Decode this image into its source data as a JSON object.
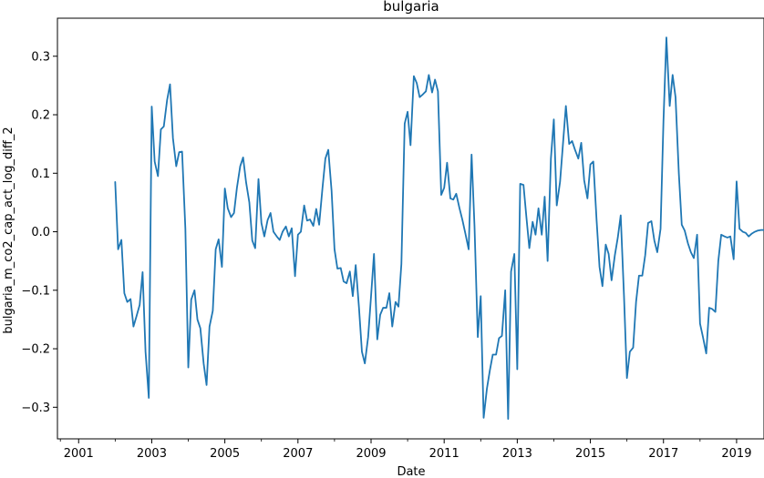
{
  "chart_data": {
    "type": "line",
    "title": "bulgaria",
    "xlabel": "Date",
    "ylabel": "bulgaria_m_co2_cap_act_log_diff_2",
    "xlim": [
      2000.42,
      2019.75
    ],
    "ylim": [
      -0.354,
      0.365
    ],
    "grid": false,
    "x_ticks": [
      {
        "label": "2001",
        "value": 2001
      },
      {
        "label": "2003",
        "value": 2003
      },
      {
        "label": "2005",
        "value": 2005
      },
      {
        "label": "2007",
        "value": 2007
      },
      {
        "label": "2009",
        "value": 2009
      },
      {
        "label": "2011",
        "value": 2011
      },
      {
        "label": "2013",
        "value": 2013
      },
      {
        "label": "2015",
        "value": 2015
      },
      {
        "label": "2017",
        "value": 2017
      },
      {
        "label": "2019",
        "value": 2019
      }
    ],
    "y_ticks": [
      {
        "label": "−0.3",
        "value": -0.3
      },
      {
        "label": "−0.2",
        "value": -0.2
      },
      {
        "label": "−0.1",
        "value": -0.1
      },
      {
        "label": "0.0",
        "value": 0.0
      },
      {
        "label": "0.1",
        "value": 0.1
      },
      {
        "label": "0.2",
        "value": 0.2
      },
      {
        "label": "0.3",
        "value": 0.3
      }
    ],
    "color": "#1f77b4",
    "series": [
      {
        "x": [
          2002.0,
          2002.08,
          2002.17,
          2002.25,
          2002.33,
          2002.42,
          2002.5,
          2002.58,
          2002.67,
          2002.75,
          2002.83,
          2002.92,
          2003.0,
          2003.08,
          2003.17,
          2003.25,
          2003.33,
          2003.42,
          2003.5,
          2003.58,
          2003.67,
          2003.75,
          2003.83,
          2003.92,
          2004.0,
          2004.08,
          2004.17,
          2004.25,
          2004.33,
          2004.42,
          2004.5,
          2004.58,
          2004.67,
          2004.75,
          2004.83,
          2004.92,
          2005.0,
          2005.08,
          2005.17,
          2005.25,
          2005.33,
          2005.42,
          2005.5,
          2005.58,
          2005.67,
          2005.75,
          2005.83,
          2005.92,
          2006.0,
          2006.08,
          2006.17,
          2006.25,
          2006.33,
          2006.42,
          2006.5,
          2006.58,
          2006.67,
          2006.75,
          2006.83,
          2006.92,
          2007.0,
          2007.08,
          2007.17,
          2007.25,
          2007.33,
          2007.42,
          2007.5,
          2007.58,
          2007.67,
          2007.75,
          2007.83,
          2007.92,
          2008.0,
          2008.08,
          2008.17,
          2008.25,
          2008.33,
          2008.42,
          2008.5,
          2008.58,
          2008.67,
          2008.75,
          2008.83,
          2008.92,
          2009.0,
          2009.08,
          2009.17,
          2009.25,
          2009.33,
          2009.42,
          2009.5,
          2009.58,
          2009.67,
          2009.75,
          2009.83,
          2009.92,
          2010.0,
          2010.08,
          2010.17,
          2010.25,
          2010.33,
          2010.42,
          2010.5,
          2010.58,
          2010.67,
          2010.75,
          2010.83,
          2010.92,
          2011.0,
          2011.08,
          2011.17,
          2011.25,
          2011.33,
          2011.42,
          2011.5,
          2011.58,
          2011.67,
          2011.75,
          2011.83,
          2011.92,
          2012.0,
          2012.08,
          2012.17,
          2012.25,
          2012.33,
          2012.42,
          2012.5,
          2012.58,
          2012.67,
          2012.75,
          2012.83,
          2012.92,
          2013.0,
          2013.08,
          2013.17,
          2013.25,
          2013.33,
          2013.42,
          2013.5,
          2013.58,
          2013.67,
          2013.75,
          2013.83,
          2013.92,
          2014.0,
          2014.08,
          2014.17,
          2014.25,
          2014.33,
          2014.42,
          2014.5,
          2014.58,
          2014.67,
          2014.75,
          2014.83,
          2014.92,
          2015.0,
          2015.08,
          2015.17,
          2015.25,
          2015.33,
          2015.42,
          2015.5,
          2015.58,
          2015.67,
          2015.75,
          2015.83,
          2015.92,
          2016.0,
          2016.08,
          2016.17,
          2016.25,
          2016.33,
          2016.42,
          2016.5,
          2016.58,
          2016.67,
          2016.75,
          2016.83,
          2016.92,
          2017.0,
          2017.08,
          2017.17,
          2017.25,
          2017.33,
          2017.42,
          2017.5,
          2017.58,
          2017.67,
          2017.75,
          2017.83,
          2017.92,
          2018.0,
          2018.08,
          2018.17,
          2018.25,
          2018.33,
          2018.42,
          2018.5,
          2018.58,
          2018.67,
          2018.75,
          2018.83,
          2018.92,
          2019.0,
          2019.08,
          2019.17,
          2019.25,
          2019.33,
          2019.42,
          2019.5,
          2019.58,
          2019.67,
          2019.75
        ],
        "y": [
          0.085,
          -0.03,
          -0.014,
          -0.105,
          -0.12,
          -0.115,
          -0.162,
          -0.145,
          -0.125,
          -0.069,
          -0.205,
          -0.284,
          0.214,
          0.12,
          0.095,
          0.175,
          0.18,
          0.225,
          0.252,
          0.16,
          0.112,
          0.136,
          0.137,
          0.005,
          -0.232,
          -0.116,
          -0.1,
          -0.15,
          -0.165,
          -0.225,
          -0.262,
          -0.162,
          -0.135,
          -0.03,
          -0.013,
          -0.06,
          0.074,
          0.04,
          0.025,
          0.032,
          0.075,
          0.112,
          0.127,
          0.085,
          0.05,
          -0.015,
          -0.028,
          0.09,
          0.015,
          -0.008,
          0.02,
          0.032,
          0.0,
          -0.008,
          -0.014,
          0.0,
          0.009,
          -0.008,
          0.006,
          -0.076,
          -0.005,
          0.0,
          0.045,
          0.019,
          0.021,
          0.01,
          0.039,
          0.012,
          0.074,
          0.125,
          0.14,
          0.07,
          -0.03,
          -0.063,
          -0.062,
          -0.085,
          -0.088,
          -0.068,
          -0.11,
          -0.057,
          -0.13,
          -0.205,
          -0.225,
          -0.18,
          -0.11,
          -0.038,
          -0.184,
          -0.142,
          -0.13,
          -0.13,
          -0.105,
          -0.162,
          -0.12,
          -0.128,
          -0.055,
          0.185,
          0.205,
          0.148,
          0.266,
          0.254,
          0.23,
          0.235,
          0.24,
          0.268,
          0.238,
          0.26,
          0.24,
          0.063,
          0.075,
          0.118,
          0.057,
          0.055,
          0.065,
          0.04,
          0.02,
          -0.003,
          -0.03,
          0.132,
          0.01,
          -0.18,
          -0.11,
          -0.318,
          -0.268,
          -0.237,
          -0.21,
          -0.21,
          -0.182,
          -0.178,
          -0.1,
          -0.32,
          -0.068,
          -0.038,
          -0.235,
          0.082,
          0.08,
          0.025,
          -0.028,
          0.017,
          -0.005,
          0.04,
          -0.005,
          0.06,
          -0.05,
          0.125,
          0.192,
          0.045,
          0.085,
          0.15,
          0.215,
          0.15,
          0.155,
          0.14,
          0.125,
          0.152,
          0.088,
          0.057,
          0.115,
          0.12,
          0.02,
          -0.06,
          -0.093,
          -0.022,
          -0.038,
          -0.083,
          -0.04,
          -0.01,
          0.028,
          -0.11,
          -0.25,
          -0.205,
          -0.198,
          -0.12,
          -0.075,
          -0.075,
          -0.04,
          0.015,
          0.018,
          -0.015,
          -0.035,
          0.005,
          0.19,
          0.332,
          0.215,
          0.268,
          0.23,
          0.1,
          0.012,
          0.002,
          -0.02,
          -0.035,
          -0.045,
          -0.005,
          -0.157,
          -0.18,
          -0.208,
          -0.13,
          -0.132,
          -0.137,
          -0.05,
          -0.005,
          -0.008,
          -0.01,
          -0.008,
          -0.047,
          0.086,
          0.005,
          0.0,
          -0.002,
          -0.008,
          -0.003,
          0.0,
          0.002,
          0.003,
          0.003
        ]
      }
    ]
  }
}
